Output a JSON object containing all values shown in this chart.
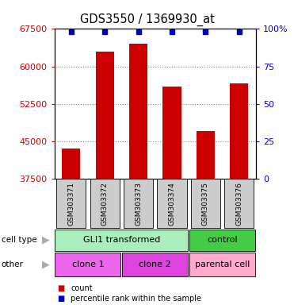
{
  "title": "GDS3550 / 1369930_at",
  "samples": [
    "GSM303371",
    "GSM303372",
    "GSM303373",
    "GSM303374",
    "GSM303375",
    "GSM303376"
  ],
  "counts": [
    43500,
    63000,
    64500,
    56000,
    47000,
    56500
  ],
  "ymin": 37500,
  "ymax": 67500,
  "yticks": [
    37500,
    45000,
    52500,
    60000,
    67500
  ],
  "right_yticks": [
    0,
    25,
    50,
    75,
    100
  ],
  "right_ytick_labels": [
    "0",
    "25",
    "50",
    "75",
    "100%"
  ],
  "bar_color": "#cc0000",
  "dot_color": "#0000cc",
  "cell_type_groups": [
    {
      "label": "GLI1 transformed",
      "start": 0,
      "end": 4,
      "color": "#aaeebb"
    },
    {
      "label": "control",
      "start": 4,
      "end": 6,
      "color": "#44cc44"
    }
  ],
  "other_groups": [
    {
      "label": "clone 1",
      "start": 0,
      "end": 2,
      "color": "#ee66ee"
    },
    {
      "label": "clone 2",
      "start": 2,
      "end": 4,
      "color": "#dd44dd"
    },
    {
      "label": "parental cell",
      "start": 4,
      "end": 6,
      "color": "#ffaacc"
    }
  ],
  "legend_count_label": "count",
  "legend_pct_label": "percentile rank within the sample",
  "left_color": "#cc0000",
  "right_color": "#0000cc",
  "bar_width": 0.55,
  "dot_size": 5,
  "bg_color": "#ffffff",
  "label_row1": "cell type",
  "label_row2": "other",
  "gray_box_color": "#cccccc",
  "grid_linestyle": ":",
  "grid_linewidth": 0.8,
  "grid_color": "#888888"
}
